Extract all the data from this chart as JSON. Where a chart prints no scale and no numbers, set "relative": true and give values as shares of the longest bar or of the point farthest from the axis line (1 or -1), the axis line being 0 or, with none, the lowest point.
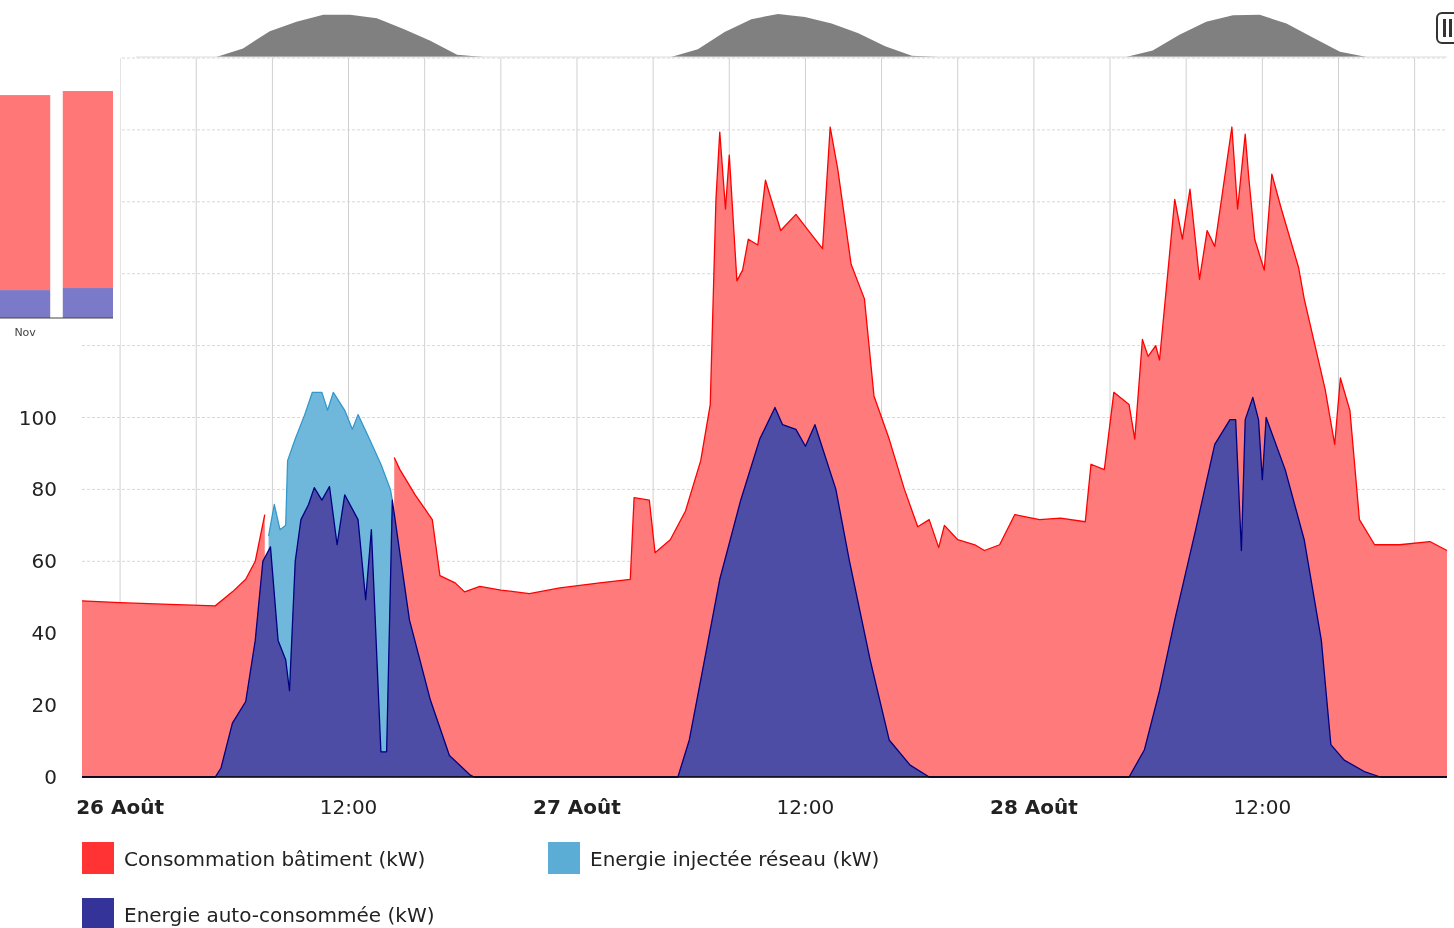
{
  "chart_data": [
    {
      "type": "area",
      "xlim": [
        "--08-25T22:00",
        "--08-28T21:42"
      ],
      "ylim": [
        0,
        200
      ],
      "xticks": [
        {
          "value": "--08-26",
          "label": "26 Août"
        },
        {
          "value": "--08-26T04:00",
          "label": null
        },
        {
          "value": "--08-26T08:00",
          "label": null
        },
        {
          "value": "--08-26T12:00",
          "label": "12:00"
        },
        {
          "value": "--08-26T16:00",
          "label": null
        },
        {
          "value": "--08-26T20:00",
          "label": null
        },
        {
          "value": "--08-27",
          "label": "27 Août"
        },
        {
          "value": "--08-27T04:00",
          "label": null
        },
        {
          "value": "--08-27T08:00",
          "label": null
        },
        {
          "value": "--08-27T12:00",
          "label": "12:00"
        },
        {
          "value": "--08-27T16:00",
          "label": null
        },
        {
          "value": "--08-27T20:00",
          "label": null
        },
        {
          "value": "--08-28",
          "label": "28 Août"
        },
        {
          "value": "--08-28T04:00",
          "label": null
        },
        {
          "value": "--08-28T08:00",
          "label": null
        },
        {
          "value": "--08-28T12:00",
          "label": "12:00"
        },
        {
          "value": "--08-28T16:00",
          "label": null
        },
        {
          "value": "--08-28T20:00",
          "label": null
        }
      ],
      "yticks": [
        0,
        20,
        40,
        60,
        80,
        100,
        {
          "value": 120,
          "label": null
        },
        {
          "value": 140,
          "label": null
        },
        {
          "value": 160,
          "label": null
        },
        {
          "value": 180,
          "label": null
        },
        {
          "value": 200,
          "label": null
        }
      ],
      "grid": true,
      "legend": "bottom",
      "series": [
        {
          "name": "Consommation bâtiment (kW)",
          "color": "#ff0000",
          "x": [
            "--08-25T22:00",
            "--08-26T00:00",
            "--08-26T02:36",
            "--08-26T05:00",
            "--08-26T05:54",
            "--08-26T06:36",
            "--08-26T07:06",
            "--08-26T07:36",
            "--08-26T08:00",
            "--08-26T10:00",
            "--08-26T14:24",
            "--08-26T14:42",
            "--08-26T15:30",
            "--08-26T16:24",
            "--08-26T16:48",
            "--08-26T17:36",
            "--08-26T18:06",
            "--08-26T18:54",
            "--08-26T20:00",
            "--08-26T21:30",
            "--08-26T23:06",
            "--08-27T01:12",
            "--08-27T02:48",
            "--08-27T03:00",
            "--08-27T03:48",
            "--08-27T04:06",
            "--08-27T04:54",
            "--08-27T05:42",
            "--08-27T06:30",
            "--08-27T07:00",
            "--08-27T07:18",
            "--08-27T07:30",
            "--08-27T07:48",
            "--08-27T08:00",
            "--08-27T08:24",
            "--08-27T08:42",
            "--08-27T09:00",
            "--08-27T09:30",
            "--08-27T09:54",
            "--08-27T10:12",
            "--08-27T10:42",
            "--08-27T11:30",
            "--08-27T12:18",
            "--08-27T12:54",
            "--08-27T13:18",
            "--08-27T13:42",
            "--08-27T14:24",
            "--08-27T15:06",
            "--08-27T15:36",
            "--08-27T16:24",
            "--08-27T17:12",
            "--08-27T17:54",
            "--08-27T18:30",
            "--08-27T19:00",
            "--08-27T19:18",
            "--08-27T20:00",
            "--08-27T20:54",
            "--08-27T21:24",
            "--08-27T22:12",
            "--08-27T23:00",
            "--08-28T00:18",
            "--08-28T01:24",
            "--08-28T02:42",
            "--08-28T03:00",
            "--08-28T03:42",
            "--08-28T04:12",
            "--08-28T05:00",
            "--08-28T05:18",
            "--08-28T05:42",
            "--08-28T06:00",
            "--08-28T06:24",
            "--08-28T06:36",
            "--08-28T07:24",
            "--08-28T07:48",
            "--08-28T08:12",
            "--08-28T08:42",
            "--08-28T09:06",
            "--08-28T09:30",
            "--08-28T10:24",
            "--08-28T10:42",
            "--08-28T11:06",
            "--08-28T11:18",
            "--08-28T11:36",
            "--08-28T12:06",
            "--08-28T12:30",
            "--08-28T13:00",
            "--08-28T13:54",
            "--08-28T14:12",
            "--08-28T15:18",
            "--08-28T15:48",
            "--08-28T16:06",
            "--08-28T16:36",
            "--08-28T17:06",
            "--08-28T17:54",
            "--08-28T19:12",
            "--08-28T20:48",
            "--08-28T21:42"
          ],
          "values": [
            49,
            48.5,
            48,
            47.6,
            51.5,
            55,
            60,
            73,
            null,
            null,
            88.9,
            85.5,
            78.5,
            71.6,
            56,
            54,
            51.5,
            53,
            52,
            51,
            52.6,
            54,
            55,
            77.7,
            77,
            62.4,
            66,
            74,
            88,
            103.6,
            160.7,
            179.4,
            158,
            173,
            138,
            141,
            149.6,
            148,
            166,
            160.7,
            152,
            156.5,
            151,
            147,
            180.8,
            169,
            142.6,
            133,
            106,
            94,
            80,
            69.6,
            71.6,
            63.8,
            70,
            66,
            64.6,
            63,
            64.6,
            73,
            71.6,
            72,
            71,
            87,
            85.5,
            107,
            103.6,
            94,
            121.7,
            117,
            120,
            116,
            160.7,
            149.6,
            163.5,
            138.4,
            152,
            147.6,
            180.8,
            158,
            178.8,
            166,
            149.6,
            141,
            167.7,
            158,
            141.8,
            133,
            107.8,
            92.5,
            111,
            102,
            71.6,
            64.6,
            64.6,
            65.5,
            63
          ]
        },
        {
          "name": "Energie injectée réseau (kW)",
          "color": "#3399cc",
          "x": [
            "--08-26T07:48",
            "--08-26T08:06",
            "--08-26T08:24",
            "--08-26T08:42",
            "--08-26T08:48",
            "--08-26T09:12",
            "--08-26T09:42",
            "--08-26T10:06",
            "--08-26T10:36",
            "--08-26T10:54",
            "--08-26T11:12",
            "--08-26T11:48",
            "--08-26T12:12",
            "--08-26T12:30",
            "--08-26T13:06",
            "--08-26T13:42",
            "--08-26T14:12",
            "--08-26T14:18"
          ],
          "values": [
            67,
            75.8,
            68.8,
            70,
            88,
            94,
            100.8,
            107,
            107,
            102,
            107,
            102,
            96.7,
            100.8,
            94,
            87,
            80,
            77
          ]
        },
        {
          "name": "Energie auto-consommée (kW)",
          "color": "#000080",
          "x": [
            "--08-25T22:00",
            "--08-26T05:00",
            "--08-26T05:18",
            "--08-26T05:54",
            "--08-26T06:36",
            "--08-26T07:06",
            "--08-26T07:30",
            "--08-26T07:54",
            "--08-26T08:18",
            "--08-26T08:42",
            "--08-26T08:54",
            "--08-26T09:12",
            "--08-26T09:30",
            "--08-26T09:54",
            "--08-26T10:12",
            "--08-26T10:36",
            "--08-26T11:00",
            "--08-26T11:24",
            "--08-26T11:48",
            "--08-26T12:30",
            "--08-26T12:54",
            "--08-26T13:12",
            "--08-26T13:42",
            "--08-26T14:00",
            "--08-26T14:18",
            "--08-26T15:12",
            "--08-26T16:18",
            "--08-26T17:18",
            "--08-26T18:24",
            "--08-26T18:36",
            "--08-27T05:18",
            "--08-27T05:54",
            "--08-27T06:42",
            "--08-27T07:30",
            "--08-27T08:36",
            "--08-27T09:36",
            "--08-27T10:24",
            "--08-27T10:48",
            "--08-27T11:30",
            "--08-27T12:00",
            "--08-27T12:30",
            "--08-27T13:36",
            "--08-27T14:18",
            "--08-27T15:24",
            "--08-27T16:24",
            "--08-27T17:30",
            "--08-27T18:30",
            "--08-28T05:00",
            "--08-28T05:48",
            "--08-28T06:36",
            "--08-28T07:24",
            "--08-28T08:30",
            "--08-28T09:30",
            "--08-28T10:18",
            "--08-28T10:36",
            "--08-28T10:54",
            "--08-28T11:06",
            "--08-28T11:30",
            "--08-28T11:48",
            "--08-28T12:00",
            "--08-28T12:12",
            "--08-28T13:12",
            "--08-28T14:12",
            "--08-28T15:06",
            "--08-28T15:36",
            "--08-28T16:18",
            "--08-28T17:24",
            "--08-28T18:12",
            "--08-28T21:42"
          ],
          "values": [
            0,
            0,
            2.5,
            15,
            21,
            38,
            60,
            64,
            38,
            32.6,
            24,
            60,
            71.6,
            75.8,
            80.5,
            77,
            80.8,
            64.6,
            78.5,
            71.6,
            49.3,
            68.8,
            7,
            7,
            77,
            43.7,
            21.4,
            6,
            0.5,
            0,
            0,
            10.3,
            32.6,
            55,
            77,
            94,
            102.8,
            98,
            96.7,
            92,
            98,
            80,
            60.4,
            32.6,
            10.3,
            3.3,
            0,
            0,
            7.5,
            24,
            43.7,
            68.8,
            92.5,
            99.4,
            99.4,
            63,
            99.4,
            105.6,
            99.4,
            82.7,
            100,
            85.5,
            66,
            38,
            9,
            4.7,
            1.4,
            0,
            0
          ]
        }
      ]
    },
    {
      "type": "bar",
      "relative": true,
      "stacked": true,
      "categories": [
        "Nov",
        null
      ],
      "series": [
        {
          "color": "#7a7ac8",
          "values": [
            0.123,
            0.132
          ]
        },
        {
          "color": "#ff7777",
          "values": [
            0.859,
            0.868
          ]
        }
      ]
    },
    {
      "type": "area",
      "relative": true,
      "categories": [
        null,
        null,
        null,
        null,
        null,
        null,
        null,
        null,
        null,
        null,
        null,
        null,
        null,
        null,
        null,
        null,
        null,
        null,
        null,
        null,
        null,
        null,
        null,
        null,
        null,
        null,
        null,
        null,
        null,
        null,
        null,
        null,
        null,
        null,
        null,
        null,
        null,
        null,
        null,
        null,
        null,
        null,
        null,
        null,
        null,
        null,
        null,
        null,
        null,
        null
      ],
      "series": [
        {
          "color": "#808080",
          "values": [
            0,
            0,
            0,
            0,
            0.2,
            0.6,
            0.82,
            0.98,
            0.98,
            0.9,
            0.65,
            0.38,
            0.05,
            0,
            0,
            0,
            0,
            0,
            0,
            0,
            0,
            0.18,
            0.58,
            0.88,
            1,
            0.93,
            0.78,
            0.55,
            0.25,
            0.03,
            0,
            0,
            0,
            0,
            0,
            0,
            0,
            0,
            0.15,
            0.52,
            0.82,
            0.97,
            0.98,
            0.78,
            0.45,
            0.12,
            0,
            0,
            0,
            0
          ]
        }
      ]
    }
  ]
}
